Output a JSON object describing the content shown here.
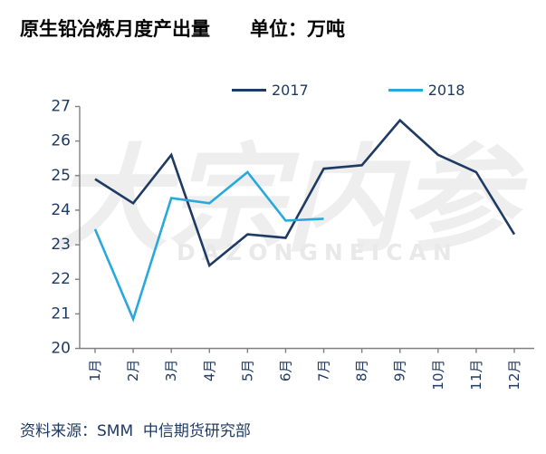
{
  "header": {
    "title": "原生铅冶炼月度产出量",
    "unit": "单位：万吨"
  },
  "chart_data": {
    "type": "line",
    "title": "原生铅冶炼月度产出量",
    "unit_label": "单位：万吨",
    "categories": [
      "1月",
      "2月",
      "3月",
      "4月",
      "5月",
      "6月",
      "7月",
      "8月",
      "9月",
      "10月",
      "11月",
      "12月"
    ],
    "series": [
      {
        "name": "2017",
        "color": "#1f3a63",
        "values": [
          24.9,
          24.2,
          25.6,
          22.4,
          23.3,
          23.2,
          25.2,
          25.3,
          26.6,
          25.6,
          25.1,
          23.3
        ]
      },
      {
        "name": "2018",
        "color": "#29a8dc",
        "values": [
          23.45,
          20.85,
          24.35,
          24.2,
          25.1,
          23.7,
          23.75
        ]
      }
    ],
    "ylim": [
      20,
      27
    ],
    "ytick_step": 1,
    "xlabel": "",
    "ylabel": "",
    "grid": false,
    "legend_position": "top",
    "axis_color": "#808080",
    "tick_label_color": "#1f3a63"
  },
  "watermark": {
    "text": "大宗内参",
    "subtext": "DAZONGNEICAN"
  },
  "footer": {
    "source": "资料来源：SMM  中信期货研究部"
  }
}
